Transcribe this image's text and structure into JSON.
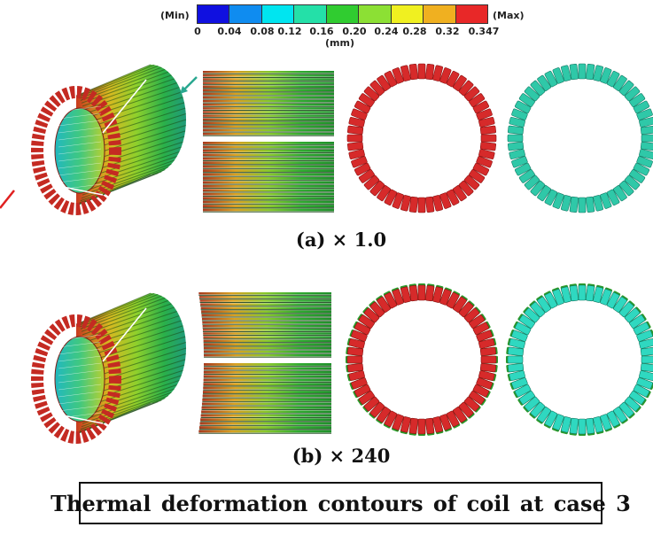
{
  "legend": {
    "min_label": "(Min)",
    "max_label": "(Max)",
    "unit": "(mm)",
    "ticks": [
      "0",
      "0.04",
      "0.08",
      "0.12",
      "0.16",
      "0.20",
      "0.24",
      "0.28",
      "0.32",
      "0.347"
    ],
    "colors": [
      "#1010e0",
      "#0f8cf0",
      "#00e5f0",
      "#24e0a8",
      "#30cc30",
      "#8ce034",
      "#f0f020",
      "#f0b020",
      "#e82828"
    ]
  },
  "captions": {
    "a": "(a) × 1.0",
    "b": "(b) × 240"
  },
  "title": "Thermal deformation contours of coil at case 3"
}
